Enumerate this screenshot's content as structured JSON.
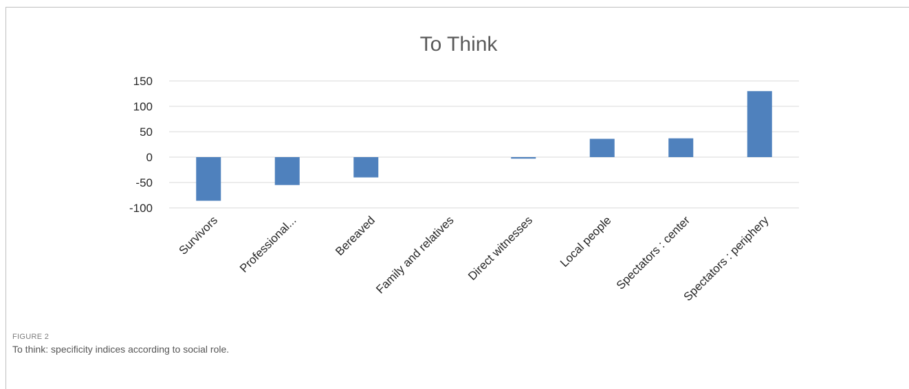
{
  "chart_data": {
    "type": "bar",
    "title": "To Think",
    "categories": [
      "Survivors",
      "Professional...",
      "Bereaved",
      "Family and relatives",
      "Direct witnesses",
      "Local people",
      "Spectators : center",
      "Spectators : periphery"
    ],
    "values": [
      -86,
      -55,
      -40,
      0,
      -3,
      36,
      37,
      130
    ],
    "ylim": [
      -100,
      150
    ],
    "yticks": [
      "-100",
      "-50",
      "0",
      "50",
      "100",
      "150"
    ],
    "ytick_values": [
      -100,
      -50,
      0,
      50,
      100,
      150
    ],
    "grid": true,
    "bar_color": "#4f81bd"
  },
  "caption": {
    "label": "FIGURE 2",
    "text": "To think: specificity indices according to social role."
  }
}
